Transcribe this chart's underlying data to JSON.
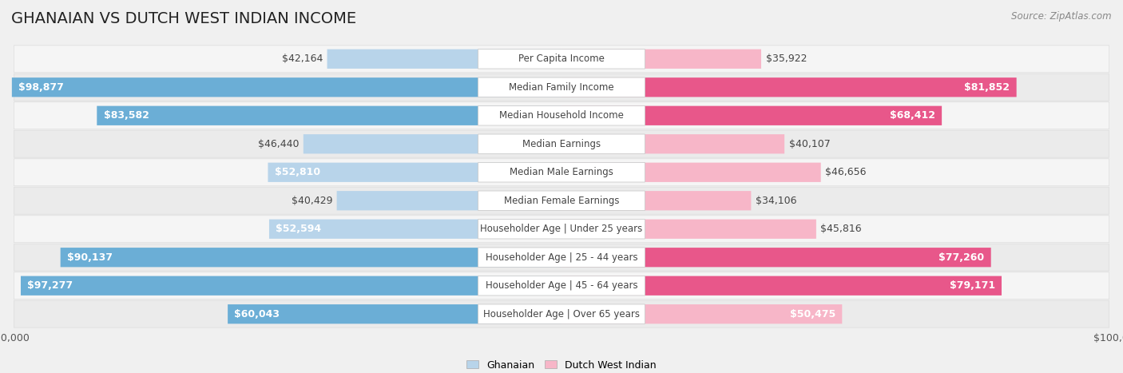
{
  "title": "GHANAIAN VS DUTCH WEST INDIAN INCOME",
  "source": "Source: ZipAtlas.com",
  "categories": [
    "Per Capita Income",
    "Median Family Income",
    "Median Household Income",
    "Median Earnings",
    "Median Male Earnings",
    "Median Female Earnings",
    "Householder Age | Under 25 years",
    "Householder Age | 25 - 44 years",
    "Householder Age | 45 - 64 years",
    "Householder Age | Over 65 years"
  ],
  "ghanaian_values": [
    42164,
    98877,
    83582,
    46440,
    52810,
    40429,
    52594,
    90137,
    97277,
    60043
  ],
  "dutch_values": [
    35922,
    81852,
    68412,
    40107,
    46656,
    34106,
    45816,
    77260,
    79171,
    50475
  ],
  "ghanaian_labels": [
    "$42,164",
    "$98,877",
    "$83,582",
    "$46,440",
    "$52,810",
    "$40,429",
    "$52,594",
    "$90,137",
    "$97,277",
    "$60,043"
  ],
  "dutch_labels": [
    "$35,922",
    "$81,852",
    "$68,412",
    "$40,107",
    "$46,656",
    "$34,106",
    "$45,816",
    "$77,260",
    "$79,171",
    "$50,475"
  ],
  "max_value": 100000,
  "ghanaian_color_light": "#b8d4ea",
  "ghanaian_color_dark": "#6baed6",
  "dutch_color_light": "#f7b6c8",
  "dutch_color_dark": "#e8578a",
  "bg_color": "#f0f0f0",
  "row_bg": "#f7f7f7",
  "row_bg_alt": "#eeeeee",
  "label_fontsize": 9,
  "title_fontsize": 14,
  "axis_label_fontsize": 9,
  "legend_fontsize": 9,
  "ghanaian_inside_threshold": 55000,
  "dutch_inside_threshold": 55000
}
